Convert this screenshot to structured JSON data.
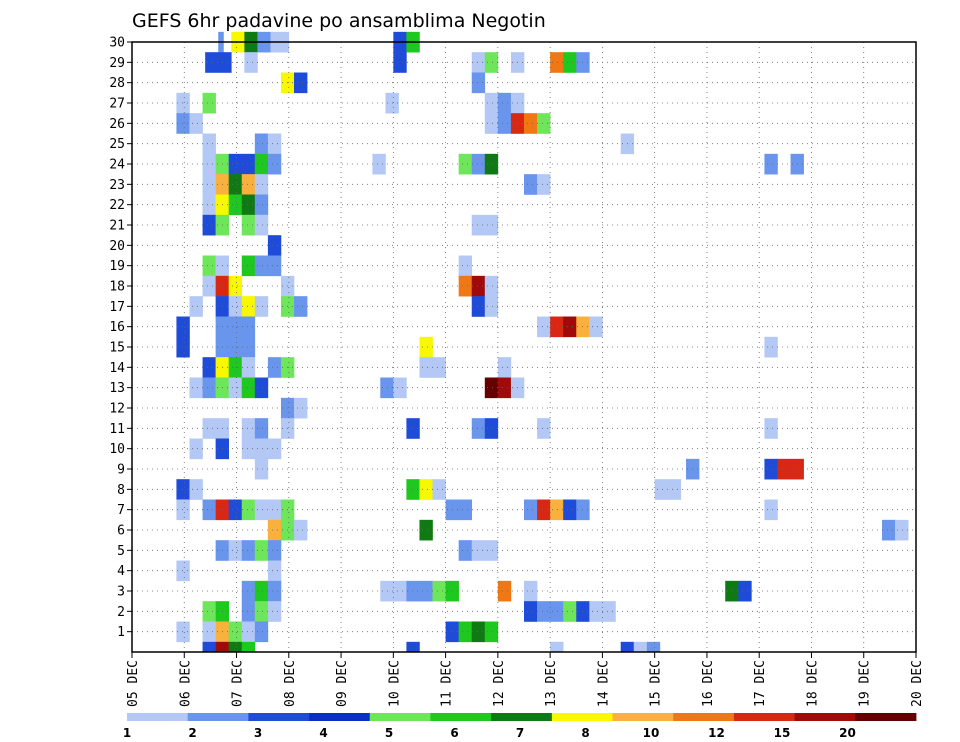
{
  "chart_data": {
    "type": "heatmap",
    "title": "GEFS 6hr padavine po ansamblima Negotin",
    "x_tick_labels": [
      "05 DEC",
      "06 DEC",
      "07 DEC",
      "08 DEC",
      "09 DEC",
      "10 DEC",
      "11 DEC",
      "12 DEC",
      "13 DEC",
      "14 DEC",
      "15 DEC",
      "16 DEC",
      "17 DEC",
      "18 DEC",
      "19 DEC",
      "20 DEC"
    ],
    "x_range_days": [
      0,
      15
    ],
    "y_tick_labels": [
      "1",
      "2",
      "3",
      "4",
      "5",
      "6",
      "7",
      "8",
      "9",
      "10",
      "11",
      "12",
      "13",
      "14",
      "15",
      "16",
      "17",
      "18",
      "19",
      "20",
      "21",
      "22",
      "23",
      "24",
      "25",
      "26",
      "27",
      "28",
      "29",
      "30"
    ],
    "y_range_members": [
      0,
      30
    ],
    "grid": true,
    "legend": {
      "position": "bottom",
      "labels": [
        "1",
        "2",
        "3",
        "4",
        "5",
        "6",
        "7",
        "8",
        "10",
        "12",
        "15",
        "20"
      ],
      "colors": [
        "#b4c8f5",
        "#6a95ec",
        "#1e4cd8",
        "#0a2fc8",
        "#6ee65a",
        "#1ec81e",
        "#0f7a14",
        "#f8f800",
        "#fab03c",
        "#f07814",
        "#d82814",
        "#a00a0a",
        "#640000"
      ]
    },
    "levels": {
      "1": "#b4c8f5",
      "2": "#6a95ec",
      "3": "#1e4cd8",
      "5": "#6ee65a",
      "6": "#1ec81e",
      "7": "#0f7a14",
      "8": "#f8f800",
      "10": "#fab03c",
      "12": "#f07814",
      "15": "#d82814",
      "20": "#a00a0a",
      "25": "#640000"
    },
    "cells": [
      {
        "m": 30,
        "c": [
          [
            1.65,
            1.75,
            2
          ],
          [
            1.9,
            2.15,
            8
          ],
          [
            2.15,
            2.4,
            7
          ],
          [
            2.4,
            2.65,
            2
          ],
          [
            2.65,
            3.0,
            1
          ],
          [
            5.0,
            5.25,
            3
          ],
          [
            5.25,
            5.5,
            6
          ]
        ]
      },
      {
        "m": 29,
        "c": [
          [
            1.4,
            1.9,
            3
          ],
          [
            2.15,
            2.4,
            1
          ],
          [
            5.0,
            5.25,
            3
          ],
          [
            6.5,
            6.75,
            1
          ],
          [
            6.75,
            7.0,
            5
          ],
          [
            7.25,
            7.5,
            1
          ],
          [
            8.0,
            8.25,
            12
          ],
          [
            8.25,
            8.5,
            6
          ],
          [
            8.5,
            8.75,
            2
          ]
        ]
      },
      {
        "m": 28,
        "c": [
          [
            2.85,
            3.1,
            8
          ],
          [
            3.1,
            3.35,
            3
          ],
          [
            6.5,
            6.75,
            2
          ]
        ]
      },
      {
        "m": 27,
        "c": [
          [
            0.85,
            1.1,
            1
          ],
          [
            1.35,
            1.6,
            5
          ],
          [
            4.85,
            5.1,
            1
          ],
          [
            6.75,
            7.0,
            1
          ],
          [
            7.0,
            7.25,
            2
          ],
          [
            7.25,
            7.5,
            1
          ]
        ]
      },
      {
        "m": 26,
        "c": [
          [
            0.85,
            1.1,
            2
          ],
          [
            1.1,
            1.35,
            1
          ],
          [
            6.75,
            7.0,
            1
          ],
          [
            7.0,
            7.25,
            2
          ],
          [
            7.25,
            7.5,
            15
          ],
          [
            7.5,
            7.75,
            12
          ],
          [
            7.75,
            8.0,
            5
          ]
        ]
      },
      {
        "m": 25,
        "c": [
          [
            1.35,
            1.6,
            1
          ],
          [
            2.35,
            2.6,
            2
          ],
          [
            2.6,
            2.85,
            1
          ],
          [
            9.35,
            9.6,
            1
          ]
        ]
      },
      {
        "m": 24,
        "c": [
          [
            1.35,
            1.6,
            1
          ],
          [
            1.6,
            1.85,
            5
          ],
          [
            1.85,
            2.35,
            3
          ],
          [
            2.35,
            2.6,
            6
          ],
          [
            2.6,
            2.85,
            2
          ],
          [
            4.6,
            4.85,
            1
          ],
          [
            6.25,
            6.5,
            5
          ],
          [
            6.5,
            6.75,
            2
          ],
          [
            6.75,
            7.0,
            7
          ],
          [
            12.1,
            12.35,
            2
          ],
          [
            12.6,
            12.85,
            2
          ]
        ]
      },
      {
        "m": 23,
        "c": [
          [
            1.35,
            1.6,
            1
          ],
          [
            1.6,
            1.85,
            10
          ],
          [
            1.85,
            2.1,
            7
          ],
          [
            2.1,
            2.35,
            10
          ],
          [
            2.35,
            2.6,
            1
          ],
          [
            7.5,
            7.75,
            2
          ],
          [
            7.75,
            8.0,
            1
          ]
        ]
      },
      {
        "m": 22,
        "c": [
          [
            1.35,
            1.6,
            1
          ],
          [
            1.6,
            1.85,
            8
          ],
          [
            1.85,
            2.1,
            6
          ],
          [
            2.1,
            2.35,
            7
          ],
          [
            2.35,
            2.6,
            2
          ]
        ]
      },
      {
        "m": 21,
        "c": [
          [
            1.35,
            1.6,
            3
          ],
          [
            1.6,
            1.85,
            5
          ],
          [
            2.1,
            2.35,
            5
          ],
          [
            2.35,
            2.6,
            1
          ],
          [
            6.5,
            7.0,
            1
          ]
        ]
      },
      {
        "m": 20,
        "c": [
          [
            2.6,
            2.85,
            3
          ]
        ]
      },
      {
        "m": 19,
        "c": [
          [
            1.35,
            1.6,
            5
          ],
          [
            1.6,
            1.85,
            1
          ],
          [
            2.1,
            2.35,
            6
          ],
          [
            2.35,
            2.85,
            2
          ],
          [
            6.25,
            6.5,
            1
          ]
        ]
      },
      {
        "m": 18,
        "c": [
          [
            1.35,
            1.6,
            1
          ],
          [
            1.6,
            1.85,
            15
          ],
          [
            1.85,
            2.1,
            8
          ],
          [
            2.85,
            3.1,
            1
          ],
          [
            6.25,
            6.5,
            12
          ],
          [
            6.5,
            6.75,
            20
          ],
          [
            6.75,
            7.0,
            1
          ]
        ]
      },
      {
        "m": 17,
        "c": [
          [
            1.1,
            1.35,
            1
          ],
          [
            1.6,
            1.85,
            3
          ],
          [
            1.85,
            2.1,
            1
          ],
          [
            2.1,
            2.35,
            8
          ],
          [
            2.35,
            2.6,
            1
          ],
          [
            2.85,
            3.1,
            5
          ],
          [
            3.1,
            3.35,
            2
          ],
          [
            6.5,
            6.75,
            3
          ],
          [
            6.75,
            7.0,
            1
          ]
        ]
      },
      {
        "m": 16,
        "c": [
          [
            0.85,
            1.1,
            3
          ],
          [
            1.6,
            2.35,
            2
          ],
          [
            7.75,
            8.0,
            1
          ],
          [
            8.0,
            8.25,
            15
          ],
          [
            8.25,
            8.5,
            20
          ],
          [
            8.5,
            8.75,
            10
          ],
          [
            8.75,
            9.0,
            1
          ]
        ]
      },
      {
        "m": 15,
        "c": [
          [
            0.85,
            1.1,
            3
          ],
          [
            1.6,
            2.35,
            2
          ],
          [
            5.5,
            5.75,
            8
          ],
          [
            12.1,
            12.35,
            1
          ]
        ]
      },
      {
        "m": 14,
        "c": [
          [
            1.35,
            1.6,
            3
          ],
          [
            1.6,
            1.85,
            8
          ],
          [
            1.85,
            2.1,
            6
          ],
          [
            2.1,
            2.35,
            1
          ],
          [
            2.6,
            2.85,
            2
          ],
          [
            2.85,
            3.1,
            5
          ],
          [
            5.5,
            6.0,
            1
          ],
          [
            7.0,
            7.25,
            1
          ]
        ]
      },
      {
        "m": 13,
        "c": [
          [
            1.1,
            1.35,
            1
          ],
          [
            1.35,
            1.6,
            2
          ],
          [
            1.6,
            1.85,
            5
          ],
          [
            1.85,
            2.1,
            1
          ],
          [
            2.1,
            2.35,
            6
          ],
          [
            2.35,
            2.6,
            3
          ],
          [
            4.75,
            5.0,
            2
          ],
          [
            5.0,
            5.25,
            1
          ],
          [
            6.75,
            7.0,
            25
          ],
          [
            7.0,
            7.25,
            20
          ],
          [
            7.25,
            7.5,
            1
          ]
        ]
      },
      {
        "m": 12,
        "c": [
          [
            2.85,
            3.1,
            2
          ],
          [
            3.1,
            3.35,
            1
          ]
        ]
      },
      {
        "m": 11,
        "c": [
          [
            1.35,
            1.85,
            1
          ],
          [
            2.1,
            2.35,
            1
          ],
          [
            2.35,
            2.6,
            2
          ],
          [
            2.85,
            3.1,
            1
          ],
          [
            5.25,
            5.5,
            3
          ],
          [
            6.5,
            6.75,
            2
          ],
          [
            6.75,
            7.0,
            3
          ],
          [
            7.75,
            8.0,
            1
          ],
          [
            12.1,
            12.35,
            1
          ]
        ]
      },
      {
        "m": 10,
        "c": [
          [
            1.1,
            1.35,
            1
          ],
          [
            1.6,
            1.85,
            3
          ],
          [
            2.1,
            2.85,
            1
          ]
        ]
      },
      {
        "m": 9,
        "c": [
          [
            2.35,
            2.6,
            1
          ],
          [
            10.6,
            10.85,
            2
          ],
          [
            12.1,
            12.35,
            3
          ],
          [
            12.35,
            12.85,
            15
          ]
        ]
      },
      {
        "m": 8,
        "c": [
          [
            0.85,
            1.1,
            3
          ],
          [
            1.1,
            1.35,
            1
          ],
          [
            5.25,
            5.5,
            6
          ],
          [
            5.5,
            5.75,
            8
          ],
          [
            5.75,
            6.0,
            1
          ],
          [
            10.0,
            10.5,
            1
          ]
        ]
      },
      {
        "m": 7,
        "c": [
          [
            0.85,
            1.1,
            1
          ],
          [
            1.35,
            1.6,
            2
          ],
          [
            1.6,
            1.85,
            15
          ],
          [
            1.85,
            2.1,
            3
          ],
          [
            2.1,
            2.35,
            5
          ],
          [
            2.35,
            2.85,
            1
          ],
          [
            2.85,
            3.1,
            5
          ],
          [
            6.0,
            6.5,
            2
          ],
          [
            7.5,
            7.75,
            2
          ],
          [
            7.75,
            8.0,
            15
          ],
          [
            8.0,
            8.25,
            10
          ],
          [
            8.25,
            8.5,
            3
          ],
          [
            8.5,
            8.75,
            2
          ],
          [
            12.1,
            12.35,
            1
          ]
        ]
      },
      {
        "m": 6,
        "c": [
          [
            2.6,
            2.85,
            10
          ],
          [
            2.85,
            3.1,
            5
          ],
          [
            3.1,
            3.35,
            1
          ],
          [
            5.5,
            5.75,
            7
          ],
          [
            14.35,
            14.6,
            2
          ],
          [
            14.6,
            14.85,
            1
          ]
        ]
      },
      {
        "m": 5,
        "c": [
          [
            1.6,
            1.85,
            2
          ],
          [
            1.85,
            2.1,
            1
          ],
          [
            2.1,
            2.35,
            2
          ],
          [
            2.35,
            2.6,
            5
          ],
          [
            2.6,
            2.85,
            2
          ],
          [
            6.25,
            6.5,
            2
          ],
          [
            6.5,
            7.0,
            1
          ]
        ]
      },
      {
        "m": 4,
        "c": [
          [
            0.85,
            1.1,
            1
          ],
          [
            2.6,
            2.85,
            1
          ]
        ]
      },
      {
        "m": 3,
        "c": [
          [
            2.1,
            2.35,
            2
          ],
          [
            2.35,
            2.6,
            6
          ],
          [
            2.6,
            2.85,
            2
          ],
          [
            4.75,
            5.25,
            1
          ],
          [
            5.25,
            5.75,
            2
          ],
          [
            5.75,
            6.0,
            5
          ],
          [
            6.0,
            6.25,
            6
          ],
          [
            7.0,
            7.25,
            12
          ],
          [
            7.5,
            7.75,
            1
          ],
          [
            11.35,
            11.6,
            7
          ],
          [
            11.6,
            11.85,
            3
          ]
        ]
      },
      {
        "m": 2,
        "c": [
          [
            1.35,
            1.6,
            5
          ],
          [
            1.6,
            1.85,
            6
          ],
          [
            2.1,
            2.35,
            2
          ],
          [
            2.35,
            2.6,
            5
          ],
          [
            2.6,
            2.85,
            1
          ],
          [
            7.5,
            7.75,
            3
          ],
          [
            7.75,
            8.25,
            2
          ],
          [
            8.25,
            8.5,
            5
          ],
          [
            8.5,
            8.75,
            3
          ],
          [
            8.75,
            9.25,
            1
          ]
        ]
      },
      {
        "m": 1,
        "c": [
          [
            0.85,
            1.1,
            1
          ],
          [
            1.35,
            1.6,
            1
          ],
          [
            1.6,
            1.85,
            10
          ],
          [
            1.85,
            2.1,
            5
          ],
          [
            2.1,
            2.35,
            1
          ],
          [
            2.35,
            2.6,
            2
          ],
          [
            6.0,
            6.25,
            3
          ],
          [
            6.25,
            6.5,
            6
          ],
          [
            6.5,
            6.75,
            7
          ],
          [
            6.75,
            7.0,
            6
          ]
        ]
      },
      {
        "m": 0.5,
        "c": [
          [
            1.35,
            1.6,
            3
          ],
          [
            1.6,
            1.85,
            20
          ],
          [
            1.85,
            2.1,
            7
          ],
          [
            2.1,
            2.35,
            6
          ],
          [
            5.25,
            5.5,
            3
          ],
          [
            8.0,
            8.25,
            1
          ],
          [
            9.35,
            9.6,
            3
          ],
          [
            9.6,
            9.85,
            1
          ],
          [
            9.85,
            10.1,
            2
          ]
        ]
      }
    ]
  }
}
